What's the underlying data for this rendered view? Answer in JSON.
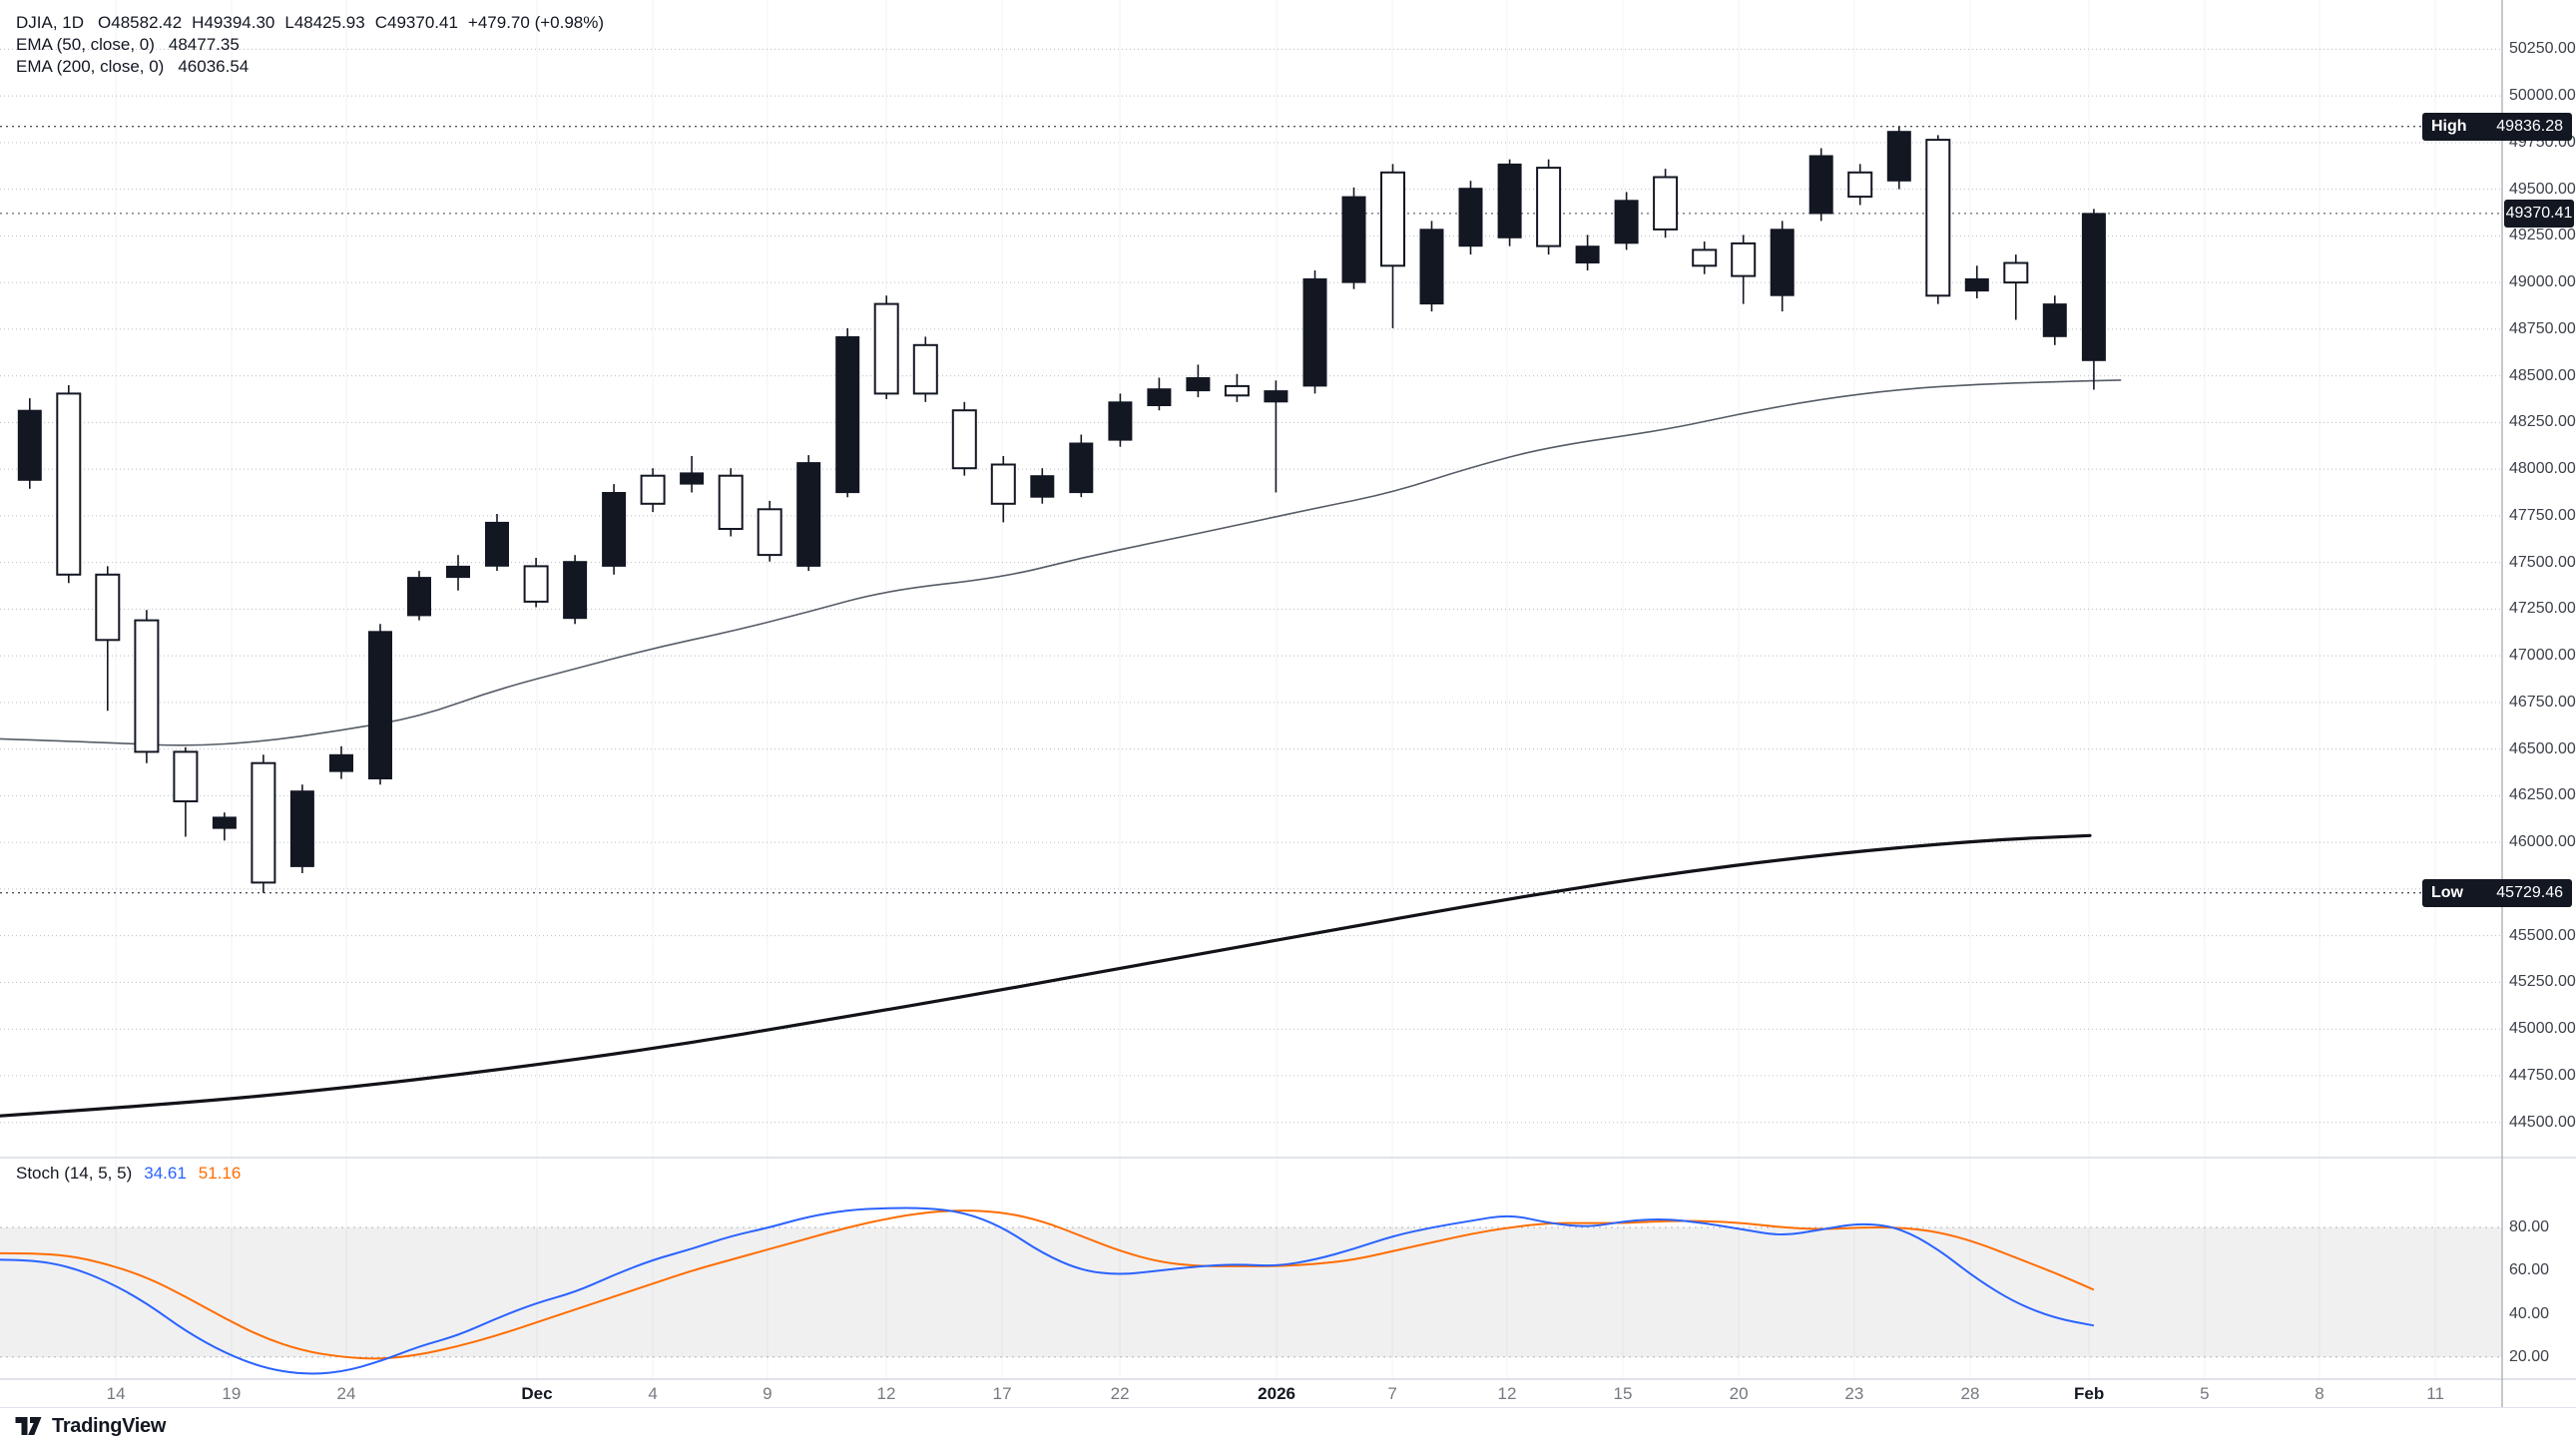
{
  "legend": {
    "title": "DJIA, 1D",
    "ohlc": [
      "O48582.42",
      "H49394.30",
      "L48425.93",
      "C49370.41"
    ],
    "change": "+479.70 (+0.98%)",
    "ema50_label": "EMA (50, close, 0)",
    "ema50_value": "48477.35",
    "ema200_label": "EMA (200, close, 0)",
    "ema200_value": "46036.54"
  },
  "stoch_legend": {
    "label": "Stoch (14, 5, 5)",
    "k": "34.61",
    "d": "51.16"
  },
  "badges": {
    "high_label": "High",
    "high_value": "49836.28",
    "high_v": 49836.28,
    "low_label": "Low",
    "low_value": "45729.46",
    "low_v": 45729.46,
    "last_value": "49370.41",
    "last_v": 49370.41
  },
  "price_axis": {
    "labels": [
      {
        "v": 50250,
        "t": "50250.00"
      },
      {
        "v": 50000,
        "t": "50000.00"
      },
      {
        "v": 49750,
        "t": "49750.00"
      },
      {
        "v": 49500,
        "t": "49500.00"
      },
      {
        "v": 49250,
        "t": "49250.00"
      },
      {
        "v": 49000,
        "t": "49000.00"
      },
      {
        "v": 48750,
        "t": "48750.00"
      },
      {
        "v": 48500,
        "t": "48500.00"
      },
      {
        "v": 48250,
        "t": "48250.00"
      },
      {
        "v": 48000,
        "t": "48000.00"
      },
      {
        "v": 47750,
        "t": "47750.00"
      },
      {
        "v": 47500,
        "t": "47500.00"
      },
      {
        "v": 47250,
        "t": "47250.00"
      },
      {
        "v": 47000,
        "t": "47000.00"
      },
      {
        "v": 46750,
        "t": "46750.00"
      },
      {
        "v": 46500,
        "t": "46500.00"
      },
      {
        "v": 46250,
        "t": "46250.00"
      },
      {
        "v": 46000,
        "t": "46000.00"
      },
      {
        "v": 45500,
        "t": "45500.00"
      },
      {
        "v": 45250,
        "t": "45250.00"
      },
      {
        "v": 45000,
        "t": "45000.00"
      },
      {
        "v": 44750,
        "t": "44750.00"
      },
      {
        "v": 44500,
        "t": "44500.00"
      }
    ]
  },
  "stoch_axis": {
    "labels": [
      {
        "v": 80,
        "t": "80.00"
      },
      {
        "v": 60,
        "t": "60.00"
      },
      {
        "v": 40,
        "t": "40.00"
      },
      {
        "v": 20,
        "t": "20.00"
      }
    ]
  },
  "time_axis": {
    "ticks": [
      {
        "t": "14",
        "x": 0.0463,
        "major": false
      },
      {
        "t": "19",
        "x": 0.0925,
        "major": false
      },
      {
        "t": "24",
        "x": 0.1384,
        "major": false
      },
      {
        "t": "Dec",
        "x": 0.2146,
        "major": true
      },
      {
        "t": "4",
        "x": 0.2609,
        "major": false
      },
      {
        "t": "9",
        "x": 0.3067,
        "major": false
      },
      {
        "t": "12",
        "x": 0.3542,
        "major": false
      },
      {
        "t": "17",
        "x": 0.4005,
        "major": false
      },
      {
        "t": "22",
        "x": 0.4476,
        "major": false
      },
      {
        "t": "2026",
        "x": 0.5102,
        "major": true
      },
      {
        "t": "7",
        "x": 0.5565,
        "major": false
      },
      {
        "t": "12",
        "x": 0.6023,
        "major": false
      },
      {
        "t": "15",
        "x": 0.6486,
        "major": false
      },
      {
        "t": "20",
        "x": 0.6949,
        "major": false
      },
      {
        "t": "23",
        "x": 0.7411,
        "major": false
      },
      {
        "t": "28",
        "x": 0.7874,
        "major": false
      },
      {
        "t": "Feb",
        "x": 0.8349,
        "major": true
      },
      {
        "t": "5",
        "x": 0.8811,
        "major": false
      },
      {
        "t": "8",
        "x": 0.927,
        "major": false
      },
      {
        "t": "11",
        "x": 0.9733,
        "major": false
      }
    ]
  },
  "footer": {
    "brand": "TradingView"
  },
  "chart_data": {
    "type": "candlestick",
    "symbol": "DJIA",
    "interval": "1D",
    "price_range": [
      44311,
      50514
    ],
    "price_grid": [
      50250,
      50000,
      49750,
      49500,
      49250,
      49000,
      48750,
      48500,
      48250,
      48000,
      47750,
      47500,
      47250,
      47000,
      46750,
      46500,
      46250,
      46000,
      45750,
      45500,
      45250,
      45000,
      44750,
      44500
    ],
    "high_line": 49836.28,
    "low_line": 45729.46,
    "last_price": 49370.41,
    "candle_columns": [
      "index",
      "high",
      "body_top",
      "body_bottom",
      "low",
      "filled"
    ],
    "candles": [
      [
        0,
        48380,
        48315,
        47940,
        47895,
        1
      ],
      [
        1,
        48450,
        48405,
        47435,
        47390,
        0
      ],
      [
        2,
        47480,
        47435,
        47085,
        46705,
        0
      ],
      [
        3,
        47245,
        47190,
        46485,
        46425,
        0
      ],
      [
        4,
        46510,
        46485,
        46220,
        46030,
        0
      ],
      [
        5,
        46160,
        46135,
        46075,
        46010,
        1
      ],
      [
        6,
        46470,
        46425,
        45785,
        45729.46,
        0
      ],
      [
        7,
        46310,
        46275,
        45870,
        45835,
        1
      ],
      [
        8,
        46515,
        46470,
        46380,
        46340,
        1
      ],
      [
        9,
        47170,
        47130,
        46340,
        46310,
        1
      ],
      [
        10,
        47455,
        47420,
        47215,
        47190,
        1
      ],
      [
        11,
        47540,
        47480,
        47420,
        47350,
        1
      ],
      [
        12,
        47760,
        47715,
        47480,
        47455,
        1
      ],
      [
        13,
        47525,
        47480,
        47290,
        47260,
        0
      ],
      [
        14,
        47540,
        47505,
        47200,
        47170,
        1
      ],
      [
        15,
        47920,
        47875,
        47480,
        47435,
        1
      ],
      [
        16,
        48005,
        47965,
        47815,
        47770,
        0
      ],
      [
        17,
        48070,
        47980,
        47920,
        47875,
        1
      ],
      [
        18,
        48005,
        47965,
        47680,
        47640,
        0
      ],
      [
        19,
        47830,
        47785,
        47540,
        47505,
        0
      ],
      [
        20,
        48075,
        48035,
        47480,
        47455,
        1
      ],
      [
        21,
        48755,
        48710,
        47875,
        47850,
        1
      ],
      [
        22,
        48930,
        48885,
        48405,
        48375,
        0
      ],
      [
        23,
        48710,
        48665,
        48405,
        48360,
        0
      ],
      [
        24,
        48360,
        48315,
        48005,
        47965,
        0
      ],
      [
        25,
        48070,
        48025,
        47815,
        47715,
        0
      ],
      [
        26,
        48005,
        47965,
        47850,
        47815,
        1
      ],
      [
        27,
        48185,
        48140,
        47875,
        47850,
        1
      ],
      [
        28,
        48405,
        48360,
        48155,
        48120,
        1
      ],
      [
        29,
        48490,
        48430,
        48340,
        48315,
        1
      ],
      [
        30,
        48560,
        48490,
        48420,
        48385,
        1
      ],
      [
        31,
        48510,
        48445,
        48395,
        48360,
        0
      ],
      [
        32,
        48475,
        48420,
        48360,
        47875,
        1
      ],
      [
        33,
        49065,
        49020,
        48445,
        48405,
        1
      ],
      [
        34,
        49510,
        49460,
        49000,
        48965,
        1
      ],
      [
        35,
        49635,
        49590,
        49090,
        48755,
        0
      ],
      [
        36,
        49330,
        49285,
        48885,
        48845,
        1
      ],
      [
        37,
        49545,
        49505,
        49195,
        49150,
        1
      ],
      [
        38,
        49660,
        49635,
        49240,
        49195,
        1
      ],
      [
        39,
        49660,
        49615,
        49195,
        49150,
        0
      ],
      [
        40,
        49255,
        49195,
        49105,
        49065,
        1
      ],
      [
        41,
        49485,
        49440,
        49210,
        49175,
        1
      ],
      [
        42,
        49610,
        49565,
        49285,
        49240,
        0
      ],
      [
        43,
        49220,
        49175,
        49090,
        49045,
        0
      ],
      [
        44,
        49255,
        49210,
        49035,
        48885,
        0
      ],
      [
        45,
        49330,
        49285,
        48930,
        48845,
        1
      ],
      [
        46,
        49720,
        49680,
        49370,
        49330,
        1
      ],
      [
        47,
        49635,
        49590,
        49460,
        49415,
        0
      ],
      [
        48,
        49836.28,
        49810,
        49545,
        49500,
        1
      ],
      [
        49,
        49790,
        49765,
        48930,
        48885,
        0
      ],
      [
        50,
        49090,
        49020,
        48955,
        48915,
        1
      ],
      [
        51,
        49150,
        49105,
        49000,
        48800,
        0
      ],
      [
        52,
        48930,
        48885,
        48710,
        48665,
        1
      ],
      [
        53,
        49394.3,
        49370.41,
        48582.42,
        48425.93,
        1
      ]
    ],
    "ema50": [
      [
        -0.8,
        46555
      ],
      [
        2,
        46535
      ],
      [
        4,
        46515
      ],
      [
        6,
        46540
      ],
      [
        8,
        46600
      ],
      [
        10,
        46672
      ],
      [
        12,
        46820
      ],
      [
        14,
        46930
      ],
      [
        16,
        47040
      ],
      [
        18,
        47130
      ],
      [
        20,
        47235
      ],
      [
        22,
        47350
      ],
      [
        25,
        47420
      ],
      [
        27,
        47525
      ],
      [
        29,
        47612
      ],
      [
        31,
        47700
      ],
      [
        33,
        47790
      ],
      [
        35,
        47875
      ],
      [
        37,
        48010
      ],
      [
        39,
        48120
      ],
      [
        42,
        48210
      ],
      [
        44,
        48300
      ],
      [
        46,
        48375
      ],
      [
        48,
        48428
      ],
      [
        50,
        48455
      ],
      [
        52,
        48468
      ],
      [
        53.7,
        48477.35
      ]
    ],
    "ema200": [
      [
        -0.8,
        44534
      ],
      [
        3.5,
        44595
      ],
      [
        7.7,
        44675
      ],
      [
        12,
        44780
      ],
      [
        16.2,
        44900
      ],
      [
        20.4,
        45045
      ],
      [
        24.7,
        45200
      ],
      [
        28.9,
        45360
      ],
      [
        33.2,
        45520
      ],
      [
        37.4,
        45677
      ],
      [
        41.6,
        45818
      ],
      [
        45.9,
        45932
      ],
      [
        50.1,
        46011
      ],
      [
        52.9,
        46036.54
      ]
    ],
    "stoch": {
      "range": [
        9.8,
        112.3
      ],
      "upper_band": 80,
      "lower_band": 20,
      "k": [
        65,
        62,
        55,
        45,
        32,
        22,
        15,
        12,
        13,
        18,
        25,
        30,
        38,
        45,
        50,
        58,
        65,
        70,
        76,
        80,
        85,
        88,
        89,
        89,
        87,
        80,
        68,
        60,
        58,
        60,
        62,
        63,
        62,
        65,
        70,
        76,
        80,
        83,
        86,
        82,
        80,
        83,
        84,
        82,
        79,
        76,
        79,
        82,
        80,
        70,
        56,
        45,
        38,
        34.61
      ],
      "d": [
        68,
        67,
        63,
        57,
        48,
        38,
        29,
        23,
        20,
        19,
        21,
        25,
        30,
        36,
        42,
        48,
        54,
        60,
        65,
        70,
        75,
        80,
        84,
        87,
        88,
        87,
        83,
        76,
        69,
        64,
        62,
        62,
        62,
        63,
        65,
        69,
        73,
        77,
        80,
        82,
        82,
        82,
        83,
        83,
        82,
        80,
        79,
        80,
        80,
        78,
        73,
        66,
        59,
        51.16
      ]
    },
    "colors": {
      "candle": "#131722",
      "ema50": "#555b66",
      "ema200": "#111318",
      "k": "#2962ff",
      "d": "#ff6d00",
      "band": "rgba(42,46,57,0.07)",
      "grid_dotted": "#b9bdc6",
      "separator": "#e0e3eb",
      "axis_border": "#aeb1ba"
    }
  }
}
